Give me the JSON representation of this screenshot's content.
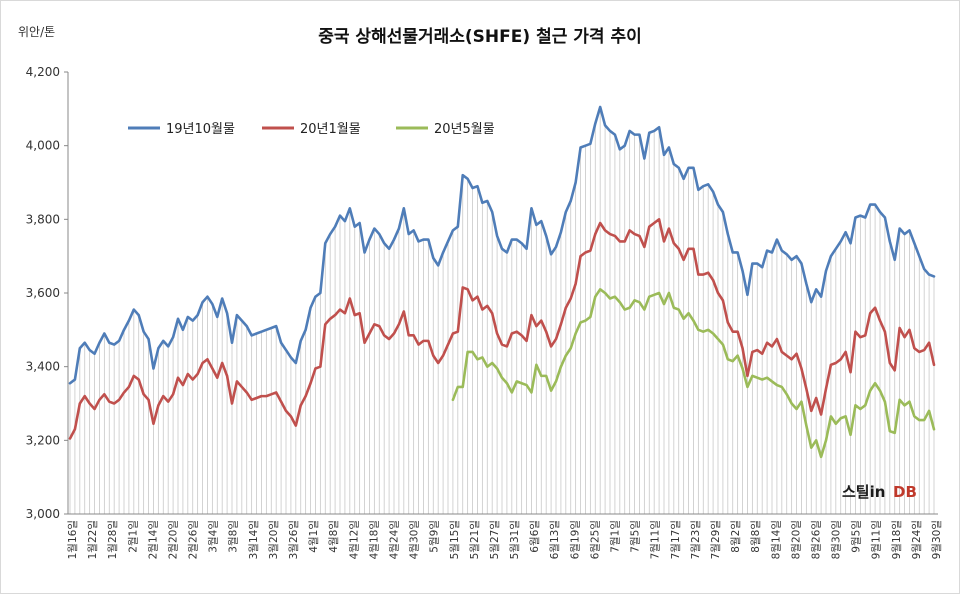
{
  "chart_data": {
    "type": "line",
    "title": "중국 상해선물거래소(SHFE) 철근 가격 추이",
    "ylabel": "위안/톤",
    "xlabel": "",
    "ylim": [
      3000,
      4200
    ],
    "yticks": [
      "3,000",
      "3,200",
      "3,400",
      "3,600",
      "3,800",
      "4,000",
      "4,200"
    ],
    "ytick_values": [
      3000,
      3200,
      3400,
      3600,
      3800,
      4000,
      4200
    ],
    "grid": "vertical-lines-per-point",
    "legend_position": "top-left",
    "x_tick_labels": [
      "1월16일",
      "1월22일",
      "1월28일",
      "2월1일",
      "2월14일",
      "2월20일",
      "2월26일",
      "3월4일",
      "3월8일",
      "3월14일",
      "3월20일",
      "3월26일",
      "4월1일",
      "4월8일",
      "4월12일",
      "4월18일",
      "4월24일",
      "4월30일",
      "5월9일",
      "5월15일",
      "5월21일",
      "5월27일",
      "5월31일",
      "6월6일",
      "6월13일",
      "6월19일",
      "6월25일",
      "7월1일",
      "7월5일",
      "7월11일",
      "7월17일",
      "7월23일",
      "7월29일",
      "8월2일",
      "8월8일",
      "8월14일",
      "8월20일",
      "8월26일",
      "8월30일",
      "9월5일",
      "9월11일",
      "9월18일",
      "9월24일",
      "9월30일"
    ],
    "series": [
      {
        "name": "19년10월물",
        "color": "#4f7db8",
        "values": [
          3355,
          3365,
          3450,
          3465,
          3445,
          3435,
          3465,
          3490,
          3465,
          3460,
          3470,
          3500,
          3525,
          3555,
          3540,
          3495,
          3475,
          3395,
          3450,
          3470,
          3455,
          3480,
          3530,
          3500,
          3535,
          3525,
          3540,
          3575,
          3590,
          3570,
          3535,
          3585,
          3545,
          3465,
          3540,
          3525,
          3510,
          3485,
          3490,
          3495,
          3500,
          3505,
          3510,
          3465,
          3445,
          3425,
          3410,
          3470,
          3500,
          3560,
          3590,
          3600,
          3735,
          3760,
          3780,
          3810,
          3795,
          3830,
          3780,
          3790,
          3710,
          3745,
          3775,
          3760,
          3735,
          3720,
          3745,
          3775,
          3830,
          3760,
          3770,
          3740,
          3745,
          3745,
          3695,
          3675,
          3710,
          3740,
          3770,
          3780,
          3920,
          3910,
          3885,
          3890,
          3845,
          3850,
          3820,
          3755,
          3720,
          3710,
          3745,
          3745,
          3735,
          3720,
          3830,
          3785,
          3795,
          3755,
          3705,
          3725,
          3765,
          3820,
          3850,
          3900,
          3995,
          4000,
          4005,
          4060,
          4105,
          4055,
          4040,
          4030,
          3990,
          4000,
          4040,
          4030,
          4030,
          3965,
          4035,
          4040,
          4050,
          3975,
          3995,
          3950,
          3940,
          3910,
          3940,
          3940,
          3880,
          3890,
          3895,
          3875,
          3840,
          3820,
          3760,
          3710,
          3710,
          3660,
          3595,
          3680,
          3680,
          3670,
          3715,
          3710,
          3745,
          3715,
          3705,
          3690,
          3700,
          3680,
          3625,
          3575,
          3610,
          3590,
          3660,
          3700,
          3720,
          3740,
          3765,
          3735,
          3805,
          3810,
          3805,
          3840,
          3840,
          3820,
          3805,
          3740,
          3690,
          3775,
          3760,
          3770,
          3735,
          3700,
          3665,
          3650,
          3645
        ]
      },
      {
        "name": "20년1월물",
        "color": "#c0504d",
        "values": [
          3205,
          3230,
          3300,
          3320,
          3300,
          3285,
          3310,
          3325,
          3305,
          3300,
          3310,
          3330,
          3345,
          3375,
          3365,
          3325,
          3310,
          3245,
          3295,
          3320,
          3305,
          3325,
          3370,
          3350,
          3380,
          3365,
          3380,
          3410,
          3420,
          3395,
          3370,
          3410,
          3375,
          3300,
          3360,
          3345,
          3330,
          3310,
          3315,
          3320,
          3320,
          3325,
          3330,
          3305,
          3280,
          3265,
          3240,
          3295,
          3320,
          3355,
          3395,
          3400,
          3515,
          3530,
          3540,
          3555,
          3545,
          3585,
          3540,
          3545,
          3465,
          3490,
          3515,
          3510,
          3485,
          3475,
          3490,
          3515,
          3550,
          3485,
          3485,
          3460,
          3470,
          3470,
          3430,
          3410,
          3430,
          3460,
          3490,
          3495,
          3615,
          3610,
          3580,
          3590,
          3555,
          3565,
          3545,
          3490,
          3460,
          3455,
          3490,
          3495,
          3485,
          3470,
          3540,
          3510,
          3525,
          3495,
          3455,
          3475,
          3515,
          3560,
          3585,
          3625,
          3700,
          3710,
          3715,
          3760,
          3790,
          3770,
          3760,
          3755,
          3740,
          3740,
          3770,
          3760,
          3755,
          3725,
          3780,
          3790,
          3800,
          3740,
          3775,
          3735,
          3720,
          3690,
          3720,
          3720,
          3650,
          3650,
          3655,
          3635,
          3600,
          3580,
          3520,
          3495,
          3495,
          3450,
          3375,
          3440,
          3445,
          3435,
          3465,
          3455,
          3475,
          3440,
          3430,
          3420,
          3435,
          3395,
          3340,
          3280,
          3315,
          3270,
          3340,
          3405,
          3410,
          3420,
          3440,
          3385,
          3495,
          3480,
          3485,
          3545,
          3560,
          3525,
          3495,
          3410,
          3390,
          3505,
          3480,
          3500,
          3450,
          3440,
          3445,
          3465,
          3405
        ]
      },
      {
        "name": "20년5월물",
        "color": "#9bbb59",
        "values": [
          null,
          null,
          null,
          null,
          null,
          null,
          null,
          null,
          null,
          null,
          null,
          null,
          null,
          null,
          null,
          null,
          null,
          null,
          null,
          null,
          null,
          null,
          null,
          null,
          null,
          null,
          null,
          null,
          null,
          null,
          null,
          null,
          null,
          null,
          null,
          null,
          null,
          null,
          null,
          null,
          null,
          null,
          null,
          null,
          null,
          null,
          null,
          null,
          null,
          null,
          null,
          null,
          null,
          null,
          null,
          null,
          null,
          null,
          null,
          null,
          null,
          null,
          null,
          null,
          null,
          null,
          null,
          null,
          null,
          null,
          null,
          null,
          null,
          null,
          null,
          null,
          null,
          null,
          3310,
          3345,
          3345,
          3440,
          3440,
          3420,
          3425,
          3400,
          3410,
          3395,
          3370,
          3355,
          3330,
          3360,
          3355,
          3350,
          3330,
          3405,
          3375,
          3375,
          3335,
          3360,
          3400,
          3430,
          3450,
          3490,
          3520,
          3525,
          3535,
          3590,
          3610,
          3600,
          3585,
          3590,
          3575,
          3555,
          3560,
          3580,
          3575,
          3555,
          3590,
          3595,
          3600,
          3570,
          3600,
          3560,
          3555,
          3530,
          3545,
          3525,
          3500,
          3495,
          3500,
          3490,
          3475,
          3460,
          3420,
          3415,
          3430,
          3395,
          3345,
          3375,
          3370,
          3365,
          3370,
          3360,
          3350,
          3345,
          3325,
          3300,
          3285,
          3305,
          3240,
          3180,
          3200,
          3155,
          3200,
          3265,
          3245,
          3260,
          3265,
          3215,
          3295,
          3285,
          3295,
          3335,
          3355,
          3335,
          3305,
          3225,
          3220,
          3310,
          3295,
          3305,
          3265,
          3255,
          3255,
          3280,
          3230
        ]
      }
    ]
  },
  "logo": {
    "text_main": "스틸in",
    "text_db": "DB"
  }
}
